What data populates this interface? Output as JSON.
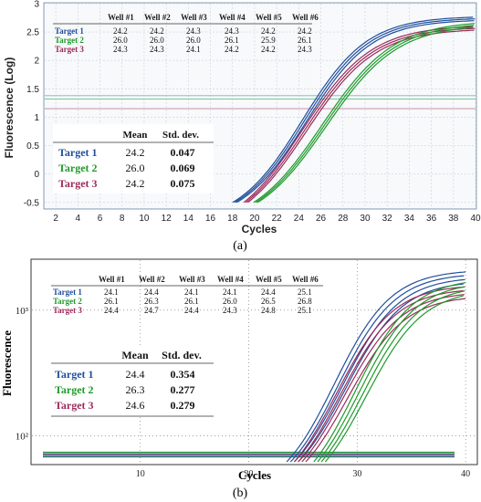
{
  "chart_data": [
    {
      "panel_label": "(a)",
      "type": "line",
      "xlabel": "Cycles",
      "ylabel": "Fluorescence (Log)",
      "xlim": [
        1,
        40
      ],
      "ylim": [
        -0.6,
        3.0
      ],
      "x_ticks": [
        "2",
        "4",
        "6",
        "8",
        "10",
        "12",
        "14",
        "16",
        "18",
        "20",
        "22",
        "24",
        "26",
        "28",
        "30",
        "32",
        "34",
        "36",
        "38",
        "40"
      ],
      "y_ticks": [
        "-0.5",
        "0",
        "0.5",
        "1",
        "1.5",
        "2",
        "2.5",
        "3"
      ],
      "wells_table": {
        "headers": [
          "",
          "Well #1",
          "Well #2",
          "Well #3",
          "Well #4",
          "Well #5",
          "Well #6"
        ],
        "rows": [
          {
            "target": "Target 1",
            "color": "#1f4e9c",
            "values": [
              "24.2",
              "24.2",
              "24.3",
              "24.3",
              "24.2",
              "24.2"
            ]
          },
          {
            "target": "Target 2",
            "color": "#1e9a2a",
            "values": [
              "26.0",
              "26.0",
              "26.0",
              "26.1",
              "25.9",
              "26.1"
            ]
          },
          {
            "target": "Target 3",
            "color": "#9c2a5a",
            "values": [
              "24.3",
              "24.3",
              "24.1",
              "24.2",
              "24.2",
              "24.3"
            ]
          }
        ]
      },
      "summary_table": {
        "headers": [
          "",
          "Mean",
          "Std. dev."
        ],
        "rows": [
          {
            "target": "Target 1",
            "color": "#1f4e9c",
            "mean": "24.2",
            "sd": "0.047"
          },
          {
            "target": "Target 2",
            "color": "#1e9a2a",
            "mean": "26.0",
            "sd": "0.069"
          },
          {
            "target": "Target 3",
            "color": "#9c2a5a",
            "mean": "24.2",
            "sd": "0.075"
          }
        ]
      },
      "series": [
        {
          "color": "#1f4e9c",
          "ct": 24.2,
          "start_cycle": 18.2,
          "start_y": -0.5,
          "plateau": 2.78,
          "slope": 0.34,
          "replicates": 3
        },
        {
          "color": "#9c2a5a",
          "ct": 24.2,
          "start_cycle": 19.2,
          "start_y": -0.5,
          "plateau": 2.62,
          "slope": 0.32,
          "replicates": 3
        },
        {
          "color": "#1e9a2a",
          "ct": 26.0,
          "start_cycle": 20.1,
          "start_y": -0.5,
          "plateau": 2.7,
          "slope": 0.31,
          "replicates": 3
        }
      ],
      "threshold_lines": [
        {
          "y": 1.38,
          "color": "#7ab0d6"
        },
        {
          "y": 1.32,
          "color": "#6cc27a"
        },
        {
          "y": 1.15,
          "color": "#c7809f"
        }
      ]
    },
    {
      "panel_label": "(b)",
      "type": "line",
      "xlabel": "Cycles",
      "ylabel": "Fluorescence",
      "y_scale": "log",
      "xlim": [
        0,
        41
      ],
      "ylim": [
        60,
        2500
      ],
      "x_ticks": [
        "10",
        "20",
        "30",
        "40"
      ],
      "y_ticks": [
        "10²",
        "10³"
      ],
      "wells_table": {
        "headers": [
          "",
          "Well #1",
          "Well #2",
          "Well #3",
          "Well #4",
          "Well #5",
          "Well #6"
        ],
        "rows": [
          {
            "target": "Target 1",
            "color": "#1f4e9c",
            "values": [
              "24.1",
              "24.4",
              "24.1",
              "24.1",
              "24.4",
              "25.1"
            ]
          },
          {
            "target": "Target 2",
            "color": "#1e9a2a",
            "values": [
              "26.1",
              "26.3",
              "26.1",
              "26.0",
              "26.5",
              "26.8"
            ]
          },
          {
            "target": "Target 3",
            "color": "#9c2a5a",
            "values": [
              "24.4",
              "24.7",
              "24.4",
              "24.3",
              "24.8",
              "25.1"
            ]
          }
        ]
      },
      "summary_table": {
        "headers": [
          "",
          "Mean",
          "Std. dev."
        ],
        "rows": [
          {
            "target": "Target 1",
            "color": "#1f4e9c",
            "mean": "24.4",
            "sd": "0.354"
          },
          {
            "target": "Target 2",
            "color": "#1e9a2a",
            "mean": "26.3",
            "sd": "0.277"
          },
          {
            "target": "Target 3",
            "color": "#9c2a5a",
            "mean": "24.6",
            "sd": "0.279"
          }
        ]
      },
      "series": [
        {
          "color": "#1f4e9c",
          "ct": 24.4,
          "start_cycle": 23.5,
          "plateau": 2100,
          "replicates": 4
        },
        {
          "color": "#9c2a5a",
          "ct": 24.6,
          "start_cycle": 24.2,
          "plateau": 1600,
          "replicates": 4
        },
        {
          "color": "#1e9a2a",
          "ct": 26.3,
          "start_cycle": 26.0,
          "plateau": 1800,
          "replicates": 4
        }
      ],
      "threshold_lines": [
        {
          "y": 74,
          "color": "#1e9a2a"
        },
        {
          "y": 72,
          "color": "#1f4e9c"
        },
        {
          "y": 70,
          "color": "#9c2a5a"
        },
        {
          "y": 68,
          "color": "#0a6a6a"
        }
      ]
    }
  ]
}
